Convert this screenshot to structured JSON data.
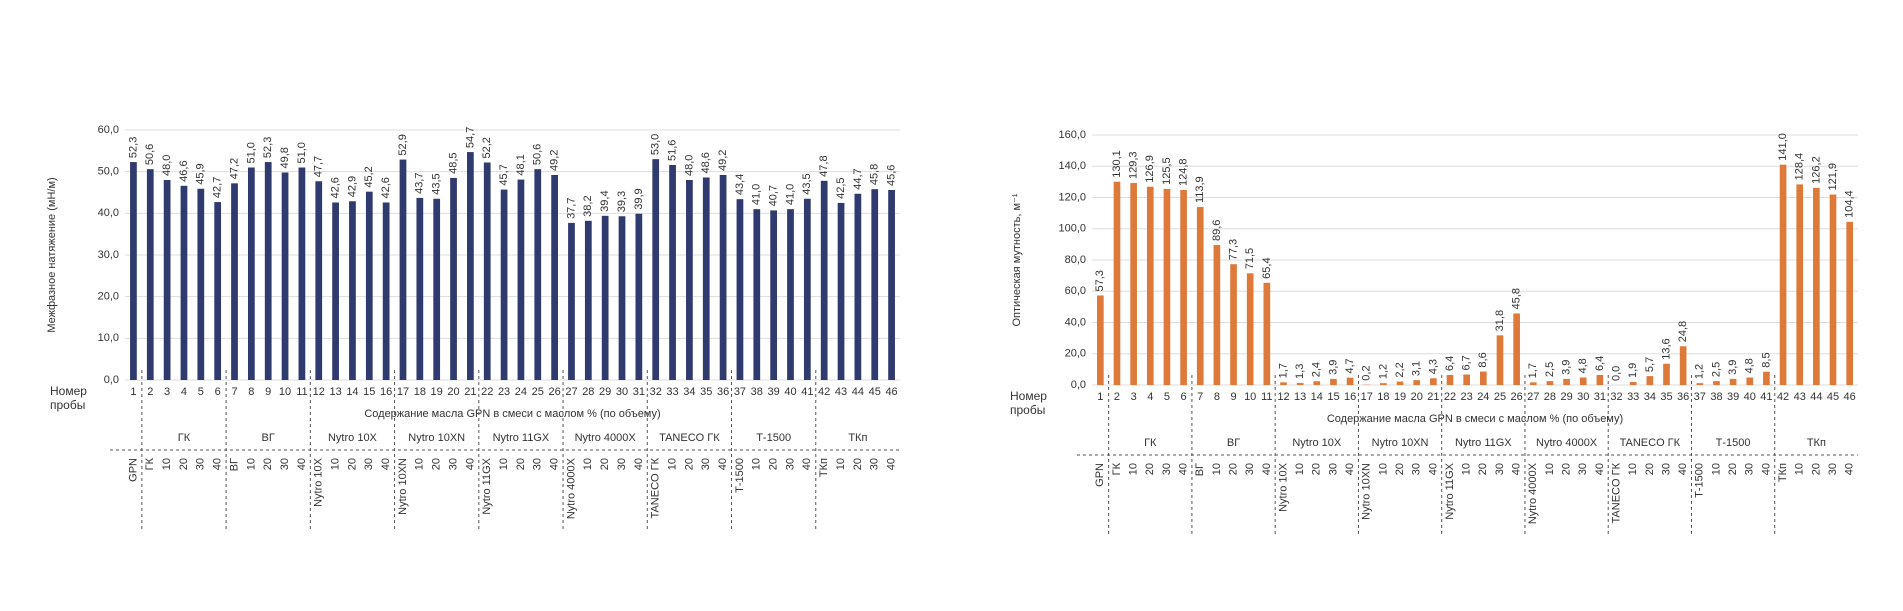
{
  "chart_data": [
    {
      "type": "bar",
      "y_label": "Межфазное натяжение (мН/м)",
      "x_label": "Содержание масла GPN в смеси с маслом % (по объему)",
      "category_axis_label": [
        "Номер",
        "пробы"
      ],
      "categories": [
        "1",
        "2",
        "3",
        "4",
        "5",
        "6",
        "7",
        "8",
        "9",
        "10",
        "11",
        "12",
        "13",
        "14",
        "15",
        "16",
        "17",
        "18",
        "19",
        "20",
        "21",
        "22",
        "23",
        "24",
        "25",
        "26",
        "27",
        "28",
        "29",
        "30",
        "31",
        "32",
        "33",
        "34",
        "35",
        "36",
        "37",
        "38",
        "39",
        "40",
        "41",
        "42",
        "43",
        "44",
        "45",
        "46"
      ],
      "values": [
        52.3,
        50.6,
        48.0,
        46.6,
        45.9,
        42.7,
        47.2,
        51.0,
        52.3,
        49.8,
        51.0,
        47.7,
        42.6,
        42.9,
        45.2,
        42.6,
        52.9,
        43.7,
        43.5,
        48.5,
        54.7,
        52.2,
        45.7,
        48.1,
        50.6,
        49.2,
        37.7,
        38.2,
        39.4,
        39.3,
        39.9,
        53.0,
        51.6,
        48.0,
        48.6,
        49.2,
        43.4,
        41.0,
        40.7,
        41.0,
        43.5,
        47.8,
        42.5,
        44.7,
        45.8,
        45.6
      ],
      "value_labels": [
        "52,3",
        "50,6",
        "48,0",
        "46,6",
        "45,9",
        "42,7",
        "47,2",
        "51,0",
        "52,3",
        "49,8",
        "51,0",
        "47,7",
        "42,6",
        "42,9",
        "45,2",
        "42,6",
        "52,9",
        "43,7",
        "43,5",
        "48,5",
        "54,7",
        "52,2",
        "45,7",
        "48,1",
        "50,6",
        "49,2",
        "37,7",
        "38,2",
        "39,4",
        "39,3",
        "39,9",
        "53,0",
        "51,6",
        "48,0",
        "48,6",
        "49,2",
        "43,4",
        "41,0",
        "40,7",
        "41,0",
        "43,5",
        "47,8",
        "42,5",
        "44,7",
        "45,8",
        "45,6"
      ],
      "color": "#2f3a6f",
      "ylim": [
        0,
        60
      ],
      "yticks": [
        {
          "value": 0,
          "label": "0,0"
        },
        {
          "value": 10,
          "label": "10,0"
        },
        {
          "value": 20,
          "label": "20,0"
        },
        {
          "value": 30,
          "label": "30,0"
        },
        {
          "value": 40,
          "label": "40,0"
        },
        {
          "value": 50,
          "label": "50,0"
        },
        {
          "value": 60,
          "label": "60,0"
        }
      ],
      "grid": true,
      "category_groups": [
        {
          "labels": [
            "GPN"
          ]
        },
        {
          "name": "ГК",
          "labels": [
            "ГК",
            "10",
            "20",
            "30",
            "40"
          ]
        },
        {
          "name": "ВГ",
          "labels": [
            "ВГ",
            "10",
            "20",
            "30",
            "40"
          ]
        },
        {
          "name": "Nytro 10X",
          "labels": [
            "Nytro 10X",
            "10",
            "20",
            "30",
            "40"
          ]
        },
        {
          "name": "Nytro 10XN",
          "labels": [
            "Nytro 10XN",
            "10",
            "20",
            "30",
            "40"
          ]
        },
        {
          "name": "Nytro 11GX",
          "labels": [
            "Nytro 11GX",
            "10",
            "20",
            "30",
            "40"
          ]
        },
        {
          "name": "Nytro 4000X",
          "labels": [
            "Nytro 4000X",
            "10",
            "20",
            "30",
            "40"
          ]
        },
        {
          "name": "TANECO ГК",
          "labels": [
            "TANECO ГК",
            "10",
            "20",
            "30",
            "40"
          ]
        },
        {
          "name": "Т-1500",
          "labels": [
            "Т-1500",
            "10",
            "20",
            "30",
            "40"
          ]
        },
        {
          "name": "ТКп",
          "labels": [
            "ТКп",
            "10",
            "20",
            "30",
            "40"
          ]
        }
      ]
    },
    {
      "type": "bar",
      "y_label": "Оптическая мутность, м⁻¹",
      "x_label": "Содержание масла GPN в смеси с маслом % (по объему)",
      "category_axis_label": [
        "Номер",
        "пробы"
      ],
      "categories": [
        "1",
        "2",
        "3",
        "4",
        "5",
        "6",
        "7",
        "8",
        "9",
        "10",
        "11",
        "12",
        "13",
        "14",
        "15",
        "16",
        "17",
        "18",
        "19",
        "20",
        "21",
        "22",
        "23",
        "24",
        "25",
        "26",
        "27",
        "28",
        "29",
        "30",
        "31",
        "32",
        "33",
        "34",
        "35",
        "36",
        "37",
        "38",
        "39",
        "40",
        "41",
        "42",
        "43",
        "44",
        "45",
        "46"
      ],
      "values": [
        57.3,
        130.1,
        129.3,
        126.9,
        125.5,
        124.8,
        113.9,
        89.6,
        77.3,
        71.5,
        65.4,
        1.7,
        1.3,
        2.4,
        3.9,
        4.7,
        0.2,
        1.2,
        2.2,
        3.1,
        4.3,
        6.4,
        6.7,
        8.6,
        31.8,
        45.8,
        1.7,
        2.5,
        3.9,
        4.8,
        6.4,
        0.0,
        1.9,
        5.7,
        13.6,
        24.8,
        1.2,
        2.5,
        3.9,
        4.8,
        8.5,
        141.0,
        128.4,
        126.2,
        121.9,
        104.4
      ],
      "value_labels": [
        "57,3",
        "130,1",
        "129,3",
        "126,9",
        "125,5",
        "124,8",
        "113,9",
        "89,6",
        "77,3",
        "71,5",
        "65,4",
        "1,7",
        "1,3",
        "2,4",
        "3,9",
        "4,7",
        "0,2",
        "1,2",
        "2,2",
        "3,1",
        "4,3",
        "6,4",
        "6,7",
        "8,6",
        "31,8",
        "45,8",
        "1,7",
        "2,5",
        "3,9",
        "4,8",
        "6,4",
        "0,0",
        "1,9",
        "5,7",
        "13,6",
        "24,8",
        "1,2",
        "2,5",
        "3,9",
        "4,8",
        "8,5",
        "141,0",
        "128,4",
        "126,2",
        "121,9",
        "104,4"
      ],
      "color": "#dd7a3a",
      "ylim": [
        0,
        160
      ],
      "yticks": [
        {
          "value": 0,
          "label": "0,0"
        },
        {
          "value": 20,
          "label": "20,0"
        },
        {
          "value": 40,
          "label": "40,0"
        },
        {
          "value": 60,
          "label": "60,0"
        },
        {
          "value": 80,
          "label": "80,0"
        },
        {
          "value": 100,
          "label": "100,0"
        },
        {
          "value": 120,
          "label": "120,0"
        },
        {
          "value": 140,
          "label": "140,0"
        },
        {
          "value": 160,
          "label": "160,0"
        }
      ],
      "grid": true,
      "category_groups": [
        {
          "labels": [
            "GPN"
          ]
        },
        {
          "name": "ГК",
          "labels": [
            "ГК",
            "10",
            "20",
            "30",
            "40"
          ]
        },
        {
          "name": "ВГ",
          "labels": [
            "ВГ",
            "10",
            "20",
            "30",
            "40"
          ]
        },
        {
          "name": "Nytro 10X",
          "labels": [
            "Nytro 10X",
            "10",
            "20",
            "30",
            "40"
          ]
        },
        {
          "name": "Nytro 10XN",
          "labels": [
            "Nytro 10XN",
            "10",
            "20",
            "30",
            "40"
          ]
        },
        {
          "name": "Nytro 11GX",
          "labels": [
            "Nytro 11GX",
            "10",
            "20",
            "30",
            "40"
          ]
        },
        {
          "name": "Nytro 4000X",
          "labels": [
            "Nytro 4000X",
            "10",
            "20",
            "30",
            "40"
          ]
        },
        {
          "name": "TANECO ГК",
          "labels": [
            "TANECO ГК",
            "10",
            "20",
            "30",
            "40"
          ]
        },
        {
          "name": "Т-1500",
          "labels": [
            "Т-1500",
            "10",
            "20",
            "30",
            "40"
          ]
        },
        {
          "name": "ТКп",
          "labels": [
            "ТКп",
            "10",
            "20",
            "30",
            "40"
          ]
        }
      ]
    }
  ]
}
